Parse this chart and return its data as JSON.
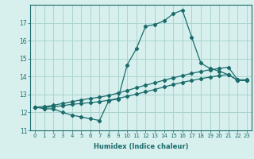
{
  "xlabel": "Humidex (Indice chaleur)",
  "background_color": "#d7f0ee",
  "grid_color": "#aad4d0",
  "line_color": "#1a6b6b",
  "xlim": [
    -0.5,
    23.5
  ],
  "ylim": [
    11.0,
    18.0
  ],
  "xticks": [
    0,
    1,
    2,
    3,
    4,
    5,
    6,
    7,
    8,
    9,
    10,
    11,
    12,
    13,
    14,
    15,
    16,
    17,
    18,
    19,
    20,
    21,
    22,
    23
  ],
  "yticks": [
    11,
    12,
    13,
    14,
    15,
    16,
    17
  ],
  "line1_x": [
    0,
    1,
    2,
    3,
    4,
    5,
    6,
    7,
    8,
    9,
    10,
    11,
    12,
    13,
    14,
    15,
    16,
    17,
    18,
    19,
    20,
    21,
    22,
    23
  ],
  "line1_y": [
    12.3,
    12.2,
    12.2,
    12.0,
    11.85,
    11.75,
    11.65,
    11.55,
    12.65,
    12.75,
    14.65,
    15.55,
    16.8,
    16.9,
    17.1,
    17.5,
    17.7,
    16.2,
    14.75,
    14.45,
    14.3,
    14.1,
    13.8,
    13.8
  ],
  "line2_x": [
    0,
    1,
    2,
    3,
    4,
    5,
    6,
    7,
    8,
    9,
    10,
    11,
    12,
    13,
    14,
    15,
    16,
    17,
    18,
    19,
    20,
    21,
    22,
    23
  ],
  "line2_y": [
    12.3,
    12.28,
    12.32,
    12.38,
    12.45,
    12.5,
    12.55,
    12.6,
    12.68,
    12.78,
    12.9,
    13.02,
    13.15,
    13.28,
    13.42,
    13.55,
    13.68,
    13.78,
    13.88,
    13.97,
    14.05,
    14.12,
    13.78,
    13.78
  ],
  "line3_x": [
    0,
    1,
    2,
    3,
    4,
    5,
    6,
    7,
    8,
    9,
    10,
    11,
    12,
    13,
    14,
    15,
    16,
    17,
    18,
    19,
    20,
    21,
    22,
    23
  ],
  "line3_y": [
    12.3,
    12.32,
    12.4,
    12.5,
    12.6,
    12.7,
    12.78,
    12.85,
    12.95,
    13.08,
    13.22,
    13.38,
    13.52,
    13.65,
    13.8,
    13.93,
    14.05,
    14.18,
    14.28,
    14.38,
    14.45,
    14.52,
    13.82,
    13.82
  ]
}
